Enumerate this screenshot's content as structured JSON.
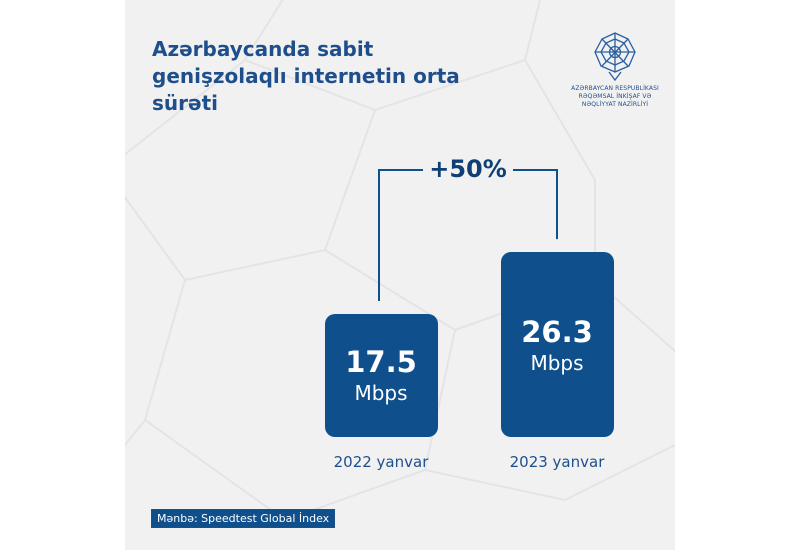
{
  "title": "Azərbaycanda sabit genişzolaqlı internetin orta sürəti",
  "organization": "AZƏRBAYCAN RESPUBLİKASI\nRƏQƏMSAL İNKİŞAF VƏ\nNƏQLİYYAT NAZİRLİYİ",
  "source": "Mənbə: Speedtest Global İndex",
  "colors": {
    "bar": "#0e4f8c",
    "text": "#1f4f8b",
    "background": "#f1f1f2"
  },
  "chart_data": {
    "type": "bar",
    "categories": [
      "2022 yanvar",
      "2023 yanvar"
    ],
    "values": [
      17.5,
      26.3
    ],
    "value_labels": [
      "17.5",
      "26.3"
    ],
    "unit": "Mbps",
    "annotation": "+50%",
    "title": "Azərbaycanda sabit genişzolaqlı internetin orta sürəti"
  }
}
